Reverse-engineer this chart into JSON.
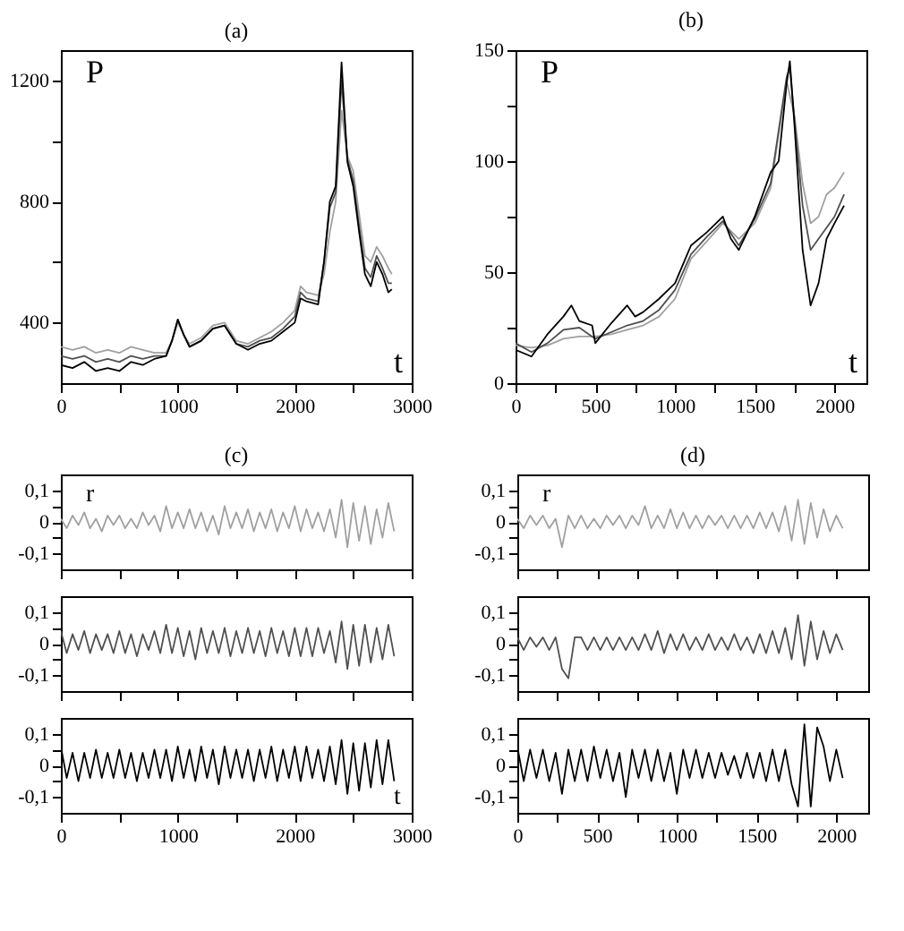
{
  "chart_data": [
    {
      "type": "line",
      "title": "(a)",
      "ylabel": "P",
      "xlabel": "t",
      "xlim": [
        0,
        3000
      ],
      "ylim": [
        200,
        1300
      ],
      "xticks": [
        0,
        {
          "value": 500,
          "label": null
        },
        1000,
        {
          "value": 1500,
          "label": null
        },
        2000,
        {
          "value": 2500,
          "label": null
        },
        3000
      ],
      "yticks": [
        400,
        {
          "value": 600,
          "label": null
        },
        800,
        {
          "value": 1000,
          "label": null
        },
        1200
      ],
      "series": [
        {
          "color": "#a0a0a0",
          "x": [
            0,
            100,
            200,
            300,
            400,
            500,
            600,
            700,
            800,
            900,
            950,
            1000,
            1050,
            1100,
            1200,
            1300,
            1400,
            1500,
            1600,
            1700,
            1800,
            1900,
            2000,
            2050,
            2100,
            2200,
            2250,
            2300,
            2350,
            2400,
            2450,
            2500,
            2550,
            2600,
            2650,
            2700,
            2750,
            2800,
            2830
          ],
          "values": [
            320,
            310,
            320,
            300,
            310,
            300,
            320,
            310,
            300,
            300,
            340,
            400,
            360,
            330,
            350,
            390,
            400,
            340,
            330,
            350,
            370,
            400,
            440,
            520,
            500,
            490,
            560,
            700,
            800,
            1100,
            950,
            900,
            760,
            620,
            600,
            650,
            620,
            580,
            560
          ]
        },
        {
          "color": "#505050",
          "x": [
            0,
            100,
            200,
            300,
            400,
            500,
            600,
            700,
            800,
            900,
            950,
            1000,
            1050,
            1100,
            1200,
            1300,
            1400,
            1500,
            1600,
            1700,
            1800,
            1900,
            2000,
            2050,
            2100,
            2200,
            2250,
            2300,
            2350,
            2400,
            2450,
            2500,
            2550,
            2600,
            2650,
            2700,
            2750,
            2800,
            2830
          ],
          "values": [
            290,
            280,
            290,
            270,
            280,
            270,
            290,
            280,
            290,
            290,
            340,
            410,
            360,
            320,
            340,
            380,
            390,
            330,
            320,
            340,
            350,
            380,
            420,
            500,
            480,
            470,
            600,
            780,
            830,
            1200,
            940,
            870,
            720,
            580,
            550,
            620,
            580,
            530,
            530
          ]
        },
        {
          "color": "#000000",
          "x": [
            0,
            100,
            200,
            300,
            400,
            500,
            600,
            700,
            800,
            900,
            950,
            1000,
            1050,
            1100,
            1200,
            1300,
            1400,
            1500,
            1600,
            1700,
            1800,
            1900,
            2000,
            2050,
            2100,
            2200,
            2250,
            2300,
            2350,
            2400,
            2450,
            2500,
            2550,
            2600,
            2650,
            2700,
            2750,
            2800,
            2830
          ],
          "values": [
            260,
            250,
            270,
            240,
            250,
            240,
            270,
            260,
            280,
            290,
            340,
            410,
            360,
            320,
            340,
            380,
            390,
            330,
            310,
            330,
            340,
            370,
            400,
            480,
            470,
            460,
            600,
            800,
            850,
            1260,
            930,
            850,
            700,
            560,
            520,
            600,
            560,
            500,
            510
          ]
        }
      ]
    },
    {
      "type": "line",
      "title": "(b)",
      "ylabel": "P",
      "xlabel": "t",
      "xlim": [
        0,
        2200
      ],
      "ylim": [
        0,
        150
      ],
      "xticks": [
        0,
        {
          "value": 250,
          "label": null
        },
        500,
        {
          "value": 750,
          "label": null
        },
        1000,
        {
          "value": 1250,
          "label": null
        },
        1500,
        {
          "value": 1750,
          "label": null
        },
        2000
      ],
      "yticks": [
        0,
        {
          "value": 25,
          "label": null
        },
        50,
        {
          "value": 75,
          "label": null
        },
        100,
        {
          "value": 125,
          "label": null
        },
        150
      ],
      "series": [
        {
          "color": "#a0a0a0",
          "x": [
            0,
            100,
            200,
            300,
            400,
            500,
            600,
            700,
            800,
            900,
            1000,
            1100,
            1200,
            1300,
            1400,
            1500,
            1600,
            1700,
            1750,
            1800,
            1850,
            1900,
            1950,
            2000,
            2060
          ],
          "values": [
            17,
            16,
            17,
            20,
            21,
            21,
            22,
            24,
            26,
            30,
            38,
            56,
            64,
            72,
            65,
            72,
            88,
            136,
            120,
            90,
            72,
            75,
            85,
            88,
            95
          ]
        },
        {
          "color": "#505050",
          "x": [
            0,
            100,
            200,
            300,
            400,
            500,
            600,
            700,
            800,
            900,
            1000,
            1100,
            1200,
            1300,
            1400,
            1500,
            1600,
            1700,
            1720,
            1750,
            1800,
            1850,
            1900,
            2000,
            2060
          ],
          "values": [
            18,
            14,
            18,
            24,
            25,
            20,
            23,
            26,
            28,
            33,
            42,
            58,
            66,
            73,
            62,
            74,
            90,
            138,
            142,
            118,
            80,
            60,
            65,
            75,
            85
          ]
        },
        {
          "color": "#000000",
          "x": [
            0,
            100,
            200,
            300,
            350,
            400,
            480,
            500,
            600,
            700,
            750,
            800,
            900,
            1000,
            1100,
            1200,
            1300,
            1350,
            1400,
            1500,
            1600,
            1650,
            1700,
            1720,
            1750,
            1800,
            1850,
            1900,
            1950,
            2000,
            2060
          ],
          "values": [
            15,
            12,
            22,
            30,
            35,
            28,
            26,
            18,
            27,
            35,
            30,
            32,
            38,
            45,
            62,
            68,
            75,
            65,
            60,
            75,
            95,
            100,
            135,
            145,
            115,
            60,
            35,
            45,
            65,
            72,
            80
          ]
        }
      ]
    },
    {
      "type": "line",
      "title": "(c)",
      "ylabel": "r",
      "tick_labels": "y",
      "xlim": [
        0,
        3000
      ],
      "ylim": [
        -0.15,
        0.15
      ],
      "xticks": [
        0,
        {
          "value": 500,
          "label": null
        },
        1000,
        {
          "value": 1500,
          "label": null
        },
        2000,
        {
          "value": 2500,
          "label": null
        },
        3000
      ],
      "yticks": [
        {
          "value": -0.1,
          "label": "-0,1"
        },
        {
          "value": -0.05,
          "label": null
        },
        0,
        {
          "value": 0.05,
          "label": null
        },
        {
          "value": 0.1,
          "label": "0,1"
        }
      ],
      "series": [
        {
          "color": "#a0a0a0",
          "x": [
            0,
            50,
            100,
            150,
            200,
            250,
            300,
            350,
            400,
            450,
            500,
            550,
            600,
            650,
            700,
            750,
            800,
            850,
            900,
            950,
            1000,
            1050,
            1100,
            1150,
            1200,
            1250,
            1300,
            1350,
            1400,
            1450,
            1500,
            1550,
            1600,
            1650,
            1700,
            1750,
            1800,
            1850,
            1900,
            1950,
            2000,
            2050,
            2100,
            2150,
            2200,
            2250,
            2300,
            2350,
            2400,
            2450,
            2500,
            2550,
            2600,
            2650,
            2700,
            2750,
            2800,
            2850
          ],
          "values": [
            0.01,
            -0.02,
            0.02,
            -0.01,
            0.03,
            -0.02,
            0.01,
            -0.03,
            0.02,
            -0.01,
            0.02,
            -0.02,
            0.01,
            -0.02,
            0.03,
            -0.01,
            0.02,
            -0.03,
            0.05,
            -0.02,
            0.03,
            -0.02,
            0.04,
            -0.02,
            0.03,
            -0.03,
            0.02,
            -0.04,
            0.05,
            -0.02,
            0.03,
            -0.02,
            0.04,
            -0.03,
            0.03,
            -0.02,
            0.04,
            -0.03,
            0.03,
            -0.02,
            0.05,
            -0.03,
            0.04,
            -0.02,
            0.03,
            -0.03,
            0.04,
            -0.05,
            0.07,
            -0.08,
            0.06,
            -0.06,
            0.05,
            -0.07,
            0.04,
            -0.05,
            0.06,
            -0.03
          ]
        }
      ]
    },
    {
      "type": "line",
      "tick_labels": "y",
      "xlim": [
        0,
        3000
      ],
      "ylim": [
        -0.15,
        0.15
      ],
      "xticks": [
        0,
        {
          "value": 500,
          "label": null
        },
        1000,
        {
          "value": 1500,
          "label": null
        },
        2000,
        {
          "value": 2500,
          "label": null
        },
        3000
      ],
      "yticks": [
        {
          "value": -0.1,
          "label": "-0,1"
        },
        {
          "value": -0.05,
          "label": null
        },
        0,
        {
          "value": 0.05,
          "label": null
        },
        {
          "value": 0.1,
          "label": "0,1"
        }
      ],
      "series": [
        {
          "color": "#505050",
          "x": [
            0,
            50,
            100,
            150,
            200,
            250,
            300,
            350,
            400,
            450,
            500,
            550,
            600,
            650,
            700,
            750,
            800,
            850,
            900,
            950,
            1000,
            1050,
            1100,
            1150,
            1200,
            1250,
            1300,
            1350,
            1400,
            1450,
            1500,
            1550,
            1600,
            1650,
            1700,
            1750,
            1800,
            1850,
            1900,
            1950,
            2000,
            2050,
            2100,
            2150,
            2200,
            2250,
            2300,
            2350,
            2400,
            2450,
            2500,
            2550,
            2600,
            2650,
            2700,
            2750,
            2800,
            2850
          ],
          "values": [
            0.04,
            -0.03,
            0.03,
            -0.02,
            0.04,
            -0.03,
            0.03,
            -0.02,
            0.03,
            -0.03,
            0.04,
            -0.03,
            0.03,
            -0.04,
            0.03,
            -0.02,
            0.04,
            -0.03,
            0.06,
            -0.03,
            0.05,
            -0.04,
            0.04,
            -0.05,
            0.05,
            -0.03,
            0.04,
            -0.03,
            0.05,
            -0.04,
            0.04,
            -0.03,
            0.05,
            -0.03,
            0.04,
            -0.04,
            0.05,
            -0.03,
            0.04,
            -0.04,
            0.05,
            -0.04,
            0.05,
            -0.04,
            0.05,
            -0.03,
            0.04,
            -0.06,
            0.07,
            -0.08,
            0.06,
            -0.07,
            0.06,
            -0.06,
            0.05,
            -0.05,
            0.06,
            -0.04
          ]
        }
      ]
    },
    {
      "type": "line",
      "xlabel": "t",
      "xlim": [
        0,
        3000
      ],
      "ylim": [
        -0.15,
        0.15
      ],
      "xticks": [
        0,
        {
          "value": 500,
          "label": null
        },
        1000,
        {
          "value": 1500,
          "label": null
        },
        2000,
        {
          "value": 2500,
          "label": null
        },
        3000
      ],
      "yticks": [
        {
          "value": -0.1,
          "label": "-0,1"
        },
        {
          "value": -0.05,
          "label": null
        },
        0,
        {
          "value": 0.05,
          "label": null
        },
        {
          "value": 0.1,
          "label": "0,1"
        }
      ],
      "series": [
        {
          "color": "#000000",
          "x": [
            0,
            50,
            100,
            150,
            200,
            250,
            300,
            350,
            400,
            450,
            500,
            550,
            600,
            650,
            700,
            750,
            800,
            850,
            900,
            950,
            1000,
            1050,
            1100,
            1150,
            1200,
            1250,
            1300,
            1350,
            1400,
            1450,
            1500,
            1550,
            1600,
            1650,
            1700,
            1750,
            1800,
            1850,
            1900,
            1950,
            2000,
            2050,
            2100,
            2150,
            2200,
            2250,
            2300,
            2350,
            2400,
            2450,
            2500,
            2550,
            2600,
            2650,
            2700,
            2750,
            2800,
            2850
          ],
          "values": [
            0.06,
            -0.04,
            0.04,
            -0.05,
            0.04,
            -0.04,
            0.05,
            -0.04,
            0.04,
            -0.04,
            0.05,
            -0.04,
            0.04,
            -0.05,
            0.04,
            -0.04,
            0.05,
            -0.04,
            0.05,
            -0.05,
            0.06,
            -0.04,
            0.05,
            -0.05,
            0.06,
            -0.04,
            0.05,
            -0.06,
            0.06,
            -0.04,
            0.05,
            -0.04,
            0.05,
            -0.05,
            0.05,
            -0.04,
            0.06,
            -0.05,
            0.05,
            -0.04,
            0.06,
            -0.05,
            0.06,
            -0.04,
            0.05,
            -0.05,
            0.06,
            -0.06,
            0.08,
            -0.09,
            0.07,
            -0.08,
            0.07,
            -0.07,
            0.08,
            -0.06,
            0.08,
            -0.05
          ]
        }
      ]
    },
    {
      "type": "line",
      "title": "(d)",
      "ylabel": "r",
      "tick_labels": "y",
      "xlim": [
        0,
        2200
      ],
      "ylim": [
        -0.15,
        0.15
      ],
      "xticks": [
        0,
        {
          "value": 250,
          "label": null
        },
        500,
        {
          "value": 750,
          "label": null
        },
        1000,
        {
          "value": 1250,
          "label": null
        },
        1500,
        {
          "value": 1750,
          "label": null
        },
        2000
      ],
      "yticks": [
        {
          "value": -0.1,
          "label": "-0,1"
        },
        {
          "value": -0.05,
          "label": null
        },
        0,
        {
          "value": 0.05,
          "label": null
        },
        {
          "value": 0.1,
          "label": "0,1"
        }
      ],
      "series": [
        {
          "color": "#a0a0a0",
          "x": [
            0,
            40,
            80,
            120,
            160,
            200,
            240,
            280,
            320,
            360,
            400,
            440,
            480,
            520,
            560,
            600,
            640,
            680,
            720,
            760,
            800,
            840,
            880,
            920,
            960,
            1000,
            1040,
            1080,
            1120,
            1160,
            1200,
            1240,
            1280,
            1320,
            1360,
            1400,
            1440,
            1480,
            1520,
            1560,
            1600,
            1640,
            1680,
            1720,
            1760,
            1800,
            1840,
            1880,
            1920,
            1960,
            2000,
            2040
          ],
          "values": [
            0.01,
            -0.02,
            0.02,
            -0.01,
            0.02,
            -0.02,
            0.01,
            -0.08,
            0.02,
            -0.02,
            0.02,
            -0.02,
            0.01,
            -0.02,
            0.02,
            -0.01,
            0.02,
            -0.02,
            0.02,
            -0.01,
            0.05,
            -0.02,
            0.02,
            -0.02,
            0.04,
            -0.02,
            0.03,
            -0.02,
            0.02,
            -0.02,
            0.02,
            -0.01,
            0.02,
            -0.02,
            0.02,
            -0.02,
            0.02,
            -0.02,
            0.03,
            -0.02,
            0.03,
            -0.03,
            0.05,
            -0.06,
            0.07,
            -0.07,
            0.06,
            -0.05,
            0.04,
            -0.03,
            0.02,
            -0.02
          ]
        }
      ]
    },
    {
      "type": "line",
      "tick_labels": "y",
      "xlim": [
        0,
        2200
      ],
      "ylim": [
        -0.15,
        0.15
      ],
      "xticks": [
        0,
        {
          "value": 250,
          "label": null
        },
        500,
        {
          "value": 750,
          "label": null
        },
        1000,
        {
          "value": 1250,
          "label": null
        },
        1500,
        {
          "value": 1750,
          "label": null
        },
        2000
      ],
      "yticks": [
        {
          "value": -0.1,
          "label": "-0,1"
        },
        {
          "value": -0.05,
          "label": null
        },
        0,
        {
          "value": 0.05,
          "label": null
        },
        {
          "value": 0.1,
          "label": "0,1"
        }
      ],
      "series": [
        {
          "color": "#505050",
          "x": [
            0,
            40,
            80,
            120,
            160,
            200,
            240,
            280,
            320,
            360,
            400,
            440,
            480,
            520,
            560,
            600,
            640,
            680,
            720,
            760,
            800,
            840,
            880,
            920,
            960,
            1000,
            1040,
            1080,
            1120,
            1160,
            1200,
            1240,
            1280,
            1320,
            1360,
            1400,
            1440,
            1480,
            1520,
            1560,
            1600,
            1640,
            1680,
            1720,
            1760,
            1800,
            1840,
            1880,
            1920,
            1960,
            2000,
            2040
          ],
          "values": [
            0.02,
            -0.02,
            0.02,
            -0.01,
            0.02,
            -0.02,
            0.02,
            -0.08,
            -0.11,
            0.02,
            0.02,
            -0.02,
            0.02,
            -0.02,
            0.02,
            -0.02,
            0.02,
            -0.02,
            0.02,
            -0.02,
            0.03,
            -0.02,
            0.04,
            -0.03,
            0.03,
            -0.02,
            0.03,
            -0.02,
            0.02,
            -0.02,
            0.03,
            -0.02,
            0.02,
            -0.02,
            0.03,
            -0.02,
            0.02,
            -0.03,
            0.03,
            -0.03,
            0.04,
            -0.03,
            0.05,
            -0.05,
            0.09,
            -0.07,
            0.07,
            -0.05,
            0.04,
            -0.03,
            0.03,
            -0.02
          ]
        }
      ]
    },
    {
      "type": "line",
      "xlim": [
        0,
        2200
      ],
      "ylim": [
        -0.15,
        0.15
      ],
      "xticks": [
        0,
        {
          "value": 250,
          "label": null
        },
        500,
        {
          "value": 750,
          "label": null
        },
        1000,
        {
          "value": 1250,
          "label": null
        },
        1500,
        {
          "value": 1750,
          "label": null
        },
        2000
      ],
      "yticks": [
        {
          "value": -0.1,
          "label": "-0,1"
        },
        {
          "value": -0.05,
          "label": null
        },
        0,
        {
          "value": 0.05,
          "label": null
        },
        {
          "value": 0.1,
          "label": "0,1"
        }
      ],
      "series": [
        {
          "color": "#000000",
          "x": [
            0,
            40,
            80,
            120,
            160,
            200,
            240,
            280,
            320,
            360,
            400,
            440,
            480,
            520,
            560,
            600,
            640,
            680,
            720,
            760,
            800,
            840,
            880,
            920,
            960,
            1000,
            1040,
            1080,
            1120,
            1160,
            1200,
            1240,
            1280,
            1320,
            1360,
            1400,
            1440,
            1480,
            1520,
            1560,
            1600,
            1640,
            1680,
            1720,
            1760,
            1800,
            1840,
            1880,
            1920,
            1960,
            2000,
            2040
          ],
          "values": [
            0.06,
            -0.05,
            0.05,
            -0.04,
            0.05,
            -0.05,
            0.04,
            -0.09,
            0.05,
            -0.05,
            0.05,
            -0.05,
            0.06,
            -0.04,
            0.05,
            -0.05,
            0.04,
            -0.1,
            0.05,
            -0.04,
            0.05,
            -0.05,
            0.05,
            -0.05,
            0.04,
            -0.09,
            0.05,
            -0.04,
            0.05,
            -0.04,
            0.04,
            -0.04,
            0.04,
            -0.03,
            0.03,
            -0.04,
            0.04,
            -0.04,
            0.04,
            -0.05,
            0.05,
            -0.05,
            0.05,
            -0.06,
            -0.13,
            0.13,
            -0.13,
            0.12,
            0.06,
            -0.05,
            0.05,
            -0.04
          ]
        }
      ]
    }
  ]
}
